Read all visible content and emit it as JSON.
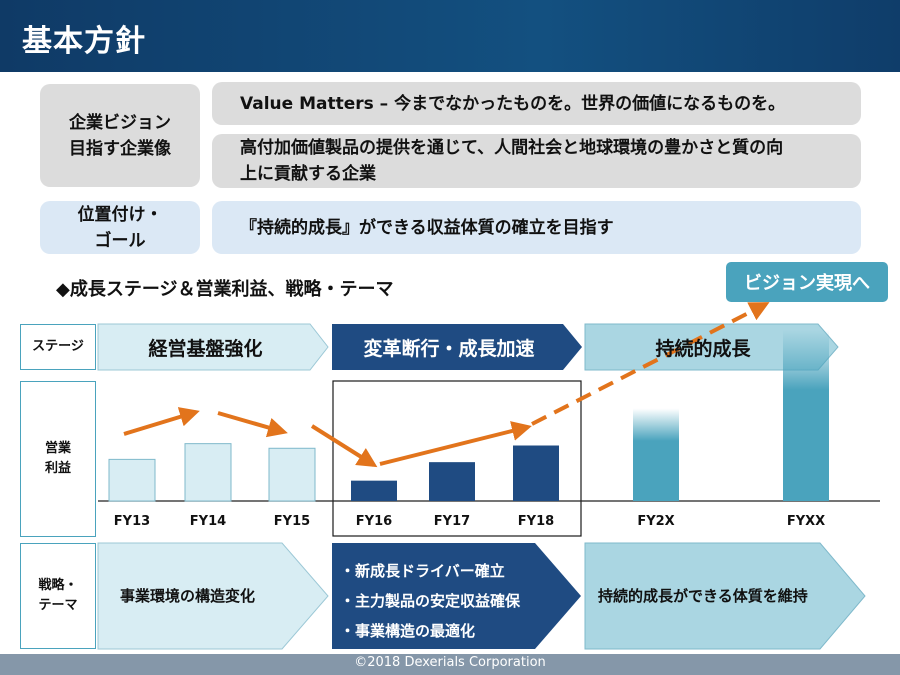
{
  "title": "基本方針",
  "vision": {
    "label_line1": "企業ビジョン",
    "label_line2": "目指す企業像",
    "statement": "Value Matters – 今までなかったものを。世界の価値になるものを。",
    "aim_line1": "高付加価値製品の提供を通じて、人間社会と地球環境の豊かさと質の向",
    "aim_line2": "上に貢献する企業"
  },
  "position": {
    "label_line1": "位置付け・",
    "label_line2": "ゴール",
    "goal": "『持続的成長』ができる収益体質の確立を目指す"
  },
  "growth_heading": "◆成長ステージ＆営業利益、戦略・テーマ",
  "vision_callout": "ビジョン実現へ",
  "side_labels": {
    "stage": "ステージ",
    "profit_line1": "営業",
    "profit_line2": "利益",
    "strategy_line1": "戦略・",
    "strategy_line2": "テーマ"
  },
  "stages": [
    {
      "name": "経営基盤強化",
      "color": "#d8edf3"
    },
    {
      "name": "変革断行・成長加速",
      "color": "#1f4b82"
    },
    {
      "name": "持続的成長",
      "color": "#aad6e2"
    }
  ],
  "chart_data": {
    "type": "bar",
    "categories": [
      "FY13",
      "FY14",
      "FY15",
      "FY16",
      "FY17",
      "FY18",
      "FY2X",
      "FYXX"
    ],
    "values": [
      45,
      62,
      57,
      22,
      42,
      60,
      100,
      185
    ],
    "series_colors": [
      "#d8edf3",
      "#d8edf3",
      "#d8edf3",
      "#1f4b82",
      "#1f4b82",
      "#1f4b82",
      "#4aa3bd",
      "#4aa3bd"
    ],
    "trend_color": "#e2741c",
    "ylim": [
      0,
      200
    ]
  },
  "themes": {
    "left": "事業環境の構造変化",
    "middle": [
      "・新成長ドライバー確立",
      "・主力製品の安定収益確保",
      "・事業構造の最適化"
    ],
    "right": "持続的成長ができる体質を維持"
  },
  "footer": "©2018  Dexerials Corporation"
}
